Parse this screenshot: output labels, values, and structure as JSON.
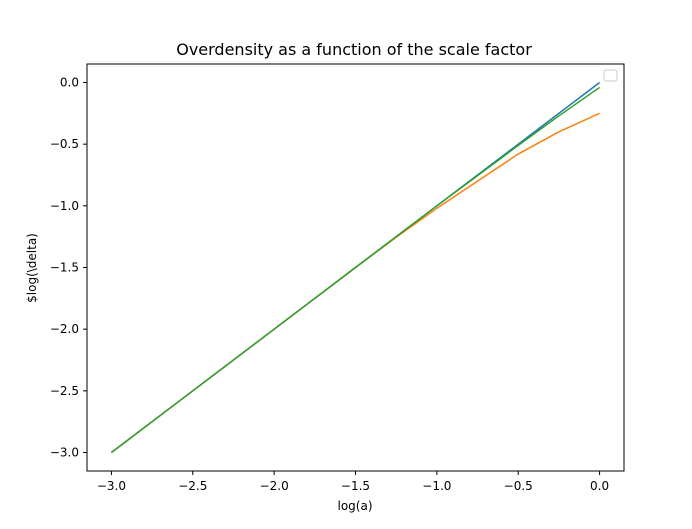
{
  "chart_data": {
    "type": "line",
    "title": "Overdensity as a function of the scale factor",
    "xlabel": "log(a)",
    "ylabel": "$log(\\delta)",
    "xlim": [
      -3.15,
      0.15
    ],
    "ylim": [
      -3.15,
      0.15
    ],
    "xticks": [
      -3.0,
      -2.5,
      -2.0,
      -1.5,
      -1.0,
      -0.5,
      0.0
    ],
    "yticks": [
      -3.0,
      -2.5,
      -2.0,
      -1.5,
      -1.0,
      -0.5,
      0.0
    ],
    "xtick_labels": [
      "−3.0",
      "−2.5",
      "−2.0",
      "−1.5",
      "−1.0",
      "−0.5",
      "0.0"
    ],
    "ytick_labels": [
      "−3.0",
      "−2.5",
      "−2.0",
      "−1.5",
      "−1.0",
      "−0.5",
      "0.0"
    ],
    "grid": false,
    "legend": {
      "placement": "top-right",
      "entries": []
    },
    "series": [
      {
        "color": "#1f77b4",
        "x": [
          -3.0,
          -2.5,
          -2.0,
          -1.5,
          -1.0,
          -0.75,
          -0.5,
          -0.25,
          0.0
        ],
        "y": [
          -3.0,
          -2.5,
          -2.0,
          -1.5,
          -1.0,
          -0.75,
          -0.5,
          -0.25,
          0.0
        ]
      },
      {
        "color": "#ff7f0e",
        "x": [
          -3.0,
          -2.5,
          -2.0,
          -1.5,
          -1.25,
          -1.0,
          -0.75,
          -0.5,
          -0.25,
          0.0
        ],
        "y": [
          -3.0,
          -2.5,
          -2.0,
          -1.5,
          -1.255,
          -1.02,
          -0.8,
          -0.58,
          -0.4,
          -0.25
        ]
      },
      {
        "color": "#2ca02c",
        "x": [
          -3.0,
          -2.5,
          -2.0,
          -1.5,
          -1.0,
          -0.75,
          -0.5,
          -0.25,
          0.0
        ],
        "y": [
          -3.0,
          -2.5,
          -2.0,
          -1.5,
          -1.0,
          -0.755,
          -0.51,
          -0.27,
          -0.04
        ]
      }
    ]
  }
}
